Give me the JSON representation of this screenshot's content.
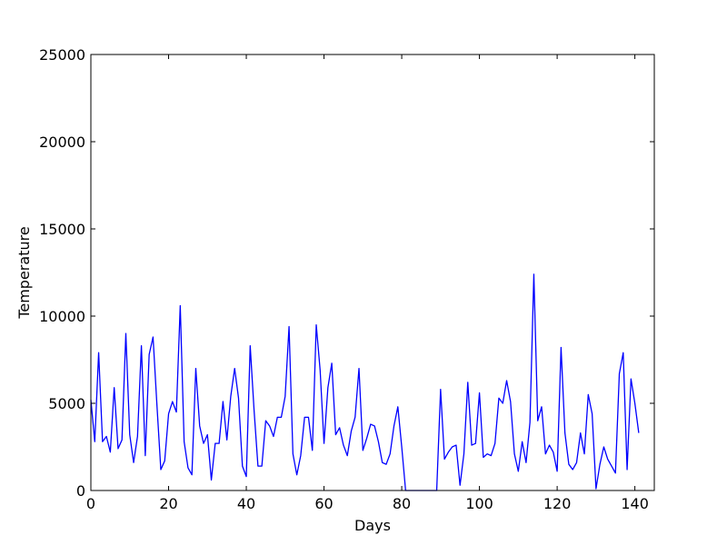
{
  "chart_data": {
    "type": "line",
    "title": "",
    "xlabel": "Days",
    "ylabel": "Temperature",
    "xlim": [
      0,
      145
    ],
    "ylim": [
      0,
      25000
    ],
    "xticks": [
      0,
      20,
      40,
      60,
      80,
      100,
      120,
      140
    ],
    "yticks": [
      0,
      5000,
      10000,
      15000,
      20000,
      25000
    ],
    "grid": false,
    "legend": "none",
    "series": [
      {
        "color": "#0000ff",
        "x": [
          0,
          1,
          2,
          3,
          4,
          5,
          6,
          7,
          8,
          9,
          10,
          11,
          12,
          13,
          14,
          15,
          16,
          17,
          18,
          19,
          20,
          21,
          22,
          23,
          24,
          25,
          26,
          27,
          28,
          29,
          30,
          31,
          32,
          33,
          34,
          35,
          36,
          37,
          38,
          39,
          40,
          41,
          42,
          43,
          44,
          45,
          46,
          47,
          48,
          49,
          50,
          51,
          52,
          53,
          54,
          55,
          56,
          57,
          58,
          59,
          60,
          61,
          62,
          63,
          64,
          65,
          66,
          67,
          68,
          69,
          70,
          71,
          72,
          73,
          74,
          75,
          76,
          77,
          78,
          79,
          80,
          81,
          82,
          83,
          84,
          85,
          86,
          87,
          88,
          89,
          90,
          91,
          92,
          93,
          94,
          95,
          96,
          97,
          98,
          99,
          100,
          101,
          102,
          103,
          104,
          105,
          106,
          107,
          108,
          109,
          110,
          111,
          112,
          113,
          114,
          115,
          116,
          117,
          118,
          119,
          120,
          121,
          122,
          123,
          124,
          125,
          126,
          127,
          128,
          129,
          130,
          131,
          132,
          133,
          134,
          135,
          136,
          137,
          138,
          139,
          140,
          141
        ],
        "y": [
          5200,
          2800,
          7900,
          2800,
          3100,
          2200,
          5900,
          2400,
          2900,
          9000,
          3200,
          1600,
          3100,
          8300,
          2000,
          7800,
          8800,
          4900,
          1200,
          1700,
          4400,
          5100,
          4500,
          10600,
          2800,
          1300,
          900,
          7000,
          3700,
          2700,
          3200,
          600,
          2700,
          2700,
          5100,
          2900,
          5400,
          7000,
          5300,
          1400,
          800,
          8300,
          4600,
          1400,
          1400,
          4000,
          3700,
          3100,
          4200,
          4200,
          5400,
          9400,
          2100,
          900,
          2000,
          4200,
          4200,
          2300,
          9500,
          6900,
          2700,
          5900,
          7300,
          3200,
          3600,
          2600,
          2000,
          3400,
          4200,
          7000,
          2300,
          3000,
          3800,
          3700,
          2800,
          1600,
          1500,
          2100,
          3700,
          4800,
          2500,
          0,
          0,
          0,
          0,
          0,
          0,
          0,
          0,
          0,
          5800,
          1800,
          2200,
          2500,
          2600,
          300,
          2100,
          6200,
          2600,
          2700,
          5600,
          1900,
          2100,
          2000,
          2700,
          5300,
          5000,
          6300,
          5100,
          2100,
          1100,
          2800,
          1600,
          3900,
          12400,
          4000,
          4800,
          2100,
          2600,
          2200,
          1100,
          8200,
          3300,
          1500,
          1200,
          1600,
          3300,
          2100,
          5500,
          4400,
          100,
          1500,
          2500,
          1800,
          1400,
          1000,
          6700,
          7900,
          1200,
          6400,
          5000,
          3300
        ]
      }
    ]
  }
}
